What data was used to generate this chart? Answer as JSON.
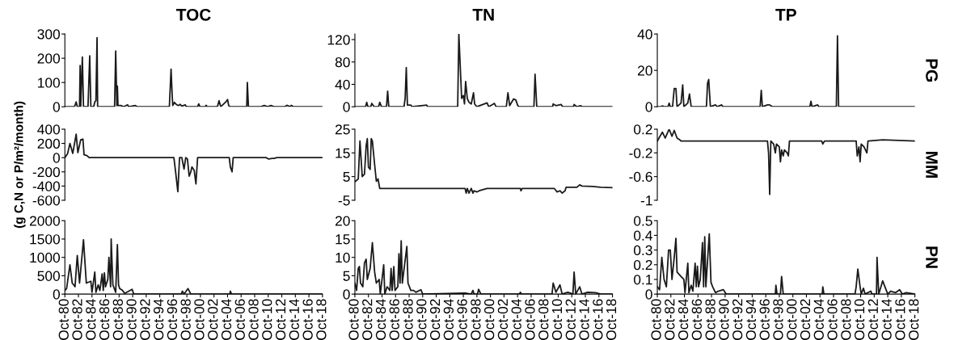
{
  "chart_data": [
    {
      "type": "line",
      "title": "TOC",
      "ylim": [
        0,
        300
      ],
      "yticks": [
        0,
        100,
        200,
        300
      ],
      "xlim": [
        "1980-10",
        "2018-10"
      ],
      "tick_labels": "y",
      "series": [
        {
          "color": "#1a1a1a",
          "x": [
            "1980-10",
            "1982-03",
            "1982-06",
            "1982-08",
            "1982-12",
            "1983-01",
            "1983-02",
            "1983-05",
            "1983-07",
            "1984-03",
            "1984-06",
            "1984-08",
            "1985-01",
            "1985-03",
            "1985-05",
            "1985-07",
            "1985-08",
            "1988-02",
            "1988-04",
            "1988-06",
            "1988-07",
            "1988-08",
            "1989-01",
            "1989-06",
            "1990-01",
            "1990-03",
            "1991-03",
            "1991-06",
            "1996-03",
            "1996-06",
            "1996-08",
            "1996-09",
            "1996-12",
            "1997-03",
            "1997-07",
            "1997-10",
            "1998-01",
            "1998-07",
            "1998-09",
            "2000-05",
            "2000-07",
            "2000-09",
            "2001-07",
            "2001-08",
            "2001-10",
            "2003-04",
            "2003-07",
            "2003-10",
            "2004-07",
            "2004-10",
            "2004-12",
            "2005-02",
            "2007-08",
            "2007-09",
            "2007-11",
            "2009-09",
            "2010-03",
            "2010-09",
            "2011-03",
            "2011-08",
            "2013-03",
            "2013-07",
            "2014-01",
            "2014-03",
            "2014-07",
            "2018-10"
          ],
          "values": [
            0,
            0,
            20,
            0,
            0,
            170,
            0,
            205,
            0,
            0,
            210,
            0,
            0,
            20,
            25,
            285,
            0,
            0,
            230,
            5,
            85,
            5,
            5,
            0,
            8,
            0,
            5,
            0,
            0,
            155,
            45,
            5,
            18,
            10,
            5,
            10,
            3,
            8,
            0,
            0,
            12,
            0,
            0,
            6,
            0,
            0,
            25,
            0,
            20,
            30,
            5,
            0,
            0,
            100,
            0,
            0,
            5,
            0,
            5,
            0,
            0,
            6,
            0,
            6,
            0,
            0
          ]
        }
      ]
    },
    {
      "type": "line",
      "title": "TN",
      "ylim": [
        0,
        130
      ],
      "yticks": [
        0,
        40,
        80,
        120
      ],
      "xlim": [
        "1980-10",
        "2018-10"
      ],
      "tick_labels": "y",
      "series": [
        {
          "color": "#1a1a1a",
          "x": [
            "1980-10",
            "1982-05",
            "1982-07",
            "1982-09",
            "1983-02",
            "1983-04",
            "1983-08",
            "1984-04",
            "1984-06",
            "1984-09",
            "1985-06",
            "1985-08",
            "1985-10",
            "1988-01",
            "1988-03",
            "1988-05",
            "1988-07",
            "1989-01",
            "1989-03",
            "1991-05",
            "1991-07",
            "1995-12",
            "1996-02",
            "1996-07",
            "1996-10",
            "1996-12",
            "1997-02",
            "1997-05",
            "1997-08",
            "1997-12",
            "1998-04",
            "1998-06",
            "1998-10",
            "2000-04",
            "2000-07",
            "2001-05",
            "2001-08",
            "2003-02",
            "2003-05",
            "2003-08",
            "2004-03",
            "2004-07",
            "2004-10",
            "2004-12",
            "2007-03",
            "2007-05",
            "2007-08",
            "2009-12",
            "2010-01",
            "2010-06",
            "2011-03",
            "2011-06",
            "2013-01",
            "2013-02",
            "2013-07",
            "2014-02",
            "2014-04",
            "2018-10"
          ],
          "values": [
            0,
            0,
            8,
            0,
            0,
            6,
            0,
            0,
            8,
            0,
            0,
            28,
            0,
            0,
            15,
            70,
            3,
            3,
            0,
            3,
            0,
            0,
            130,
            15,
            20,
            5,
            45,
            15,
            8,
            5,
            25,
            5,
            0,
            7,
            0,
            6,
            0,
            0,
            25,
            2,
            14,
            12,
            3,
            0,
            0,
            58,
            0,
            0,
            5,
            2,
            4,
            0,
            0,
            4,
            0,
            2,
            0,
            0
          ]
        }
      ]
    },
    {
      "type": "line",
      "title": "TP",
      "ylim": [
        0,
        40
      ],
      "yticks": [
        0,
        20,
        40
      ],
      "xlim": [
        "1980-10",
        "2018-10"
      ],
      "tick_labels": "y",
      "annotations": [
        "PG"
      ],
      "series": [
        {
          "color": "#1a1a1a",
          "x": [
            "1980-10",
            "1981-05",
            "1981-07",
            "1981-10",
            "1982-05",
            "1982-07",
            "1982-09",
            "1983-01",
            "1983-04",
            "1983-07",
            "1983-09",
            "1984-04",
            "1984-07",
            "1984-09",
            "1985-04",
            "1985-07",
            "1985-10",
            "1988-01",
            "1988-03",
            "1988-05",
            "1988-08",
            "1989-05",
            "1989-08",
            "1990-04",
            "1990-06",
            "1995-12",
            "1996-02",
            "1996-04",
            "1997-01",
            "1997-05",
            "1997-10",
            "2003-04",
            "2003-06",
            "2003-08",
            "2004-06",
            "2004-08",
            "2007-03",
            "2007-05",
            "2007-07",
            "2018-10"
          ],
          "values": [
            0,
            0,
            0.5,
            0,
            0,
            2,
            0,
            0,
            10,
            10,
            0,
            2,
            12,
            0,
            2,
            7,
            0,
            0,
            13,
            15,
            0,
            1,
            0,
            1,
            0,
            0,
            9,
            0,
            1,
            1,
            0,
            0,
            3,
            0,
            1,
            0,
            0,
            39,
            0,
            0
          ]
        }
      ]
    },
    {
      "type": "line",
      "ylabel": "(g C,N or P/m²/month)",
      "ylim": [
        -600,
        400
      ],
      "yticks": [
        -600,
        -400,
        -200,
        0,
        200,
        400
      ],
      "xlim": [
        "1980-10",
        "2018-10"
      ],
      "tick_labels": "y",
      "series": [
        {
          "color": "#1a1a1a",
          "x": [
            "1980-10",
            "1981-03",
            "1981-07",
            "1981-12",
            "1982-06",
            "1982-09",
            "1983-02",
            "1983-06",
            "1983-08",
            "1984-01",
            "1984-05",
            "1996-11",
            "1997-02",
            "1997-06",
            "1997-09",
            "1998-01",
            "1998-05",
            "1998-08",
            "1998-11",
            "1999-02",
            "1999-05",
            "1999-07",
            "1999-11",
            "2000-02",
            "2000-05",
            "2005-01",
            "2005-03",
            "2005-06",
            "2005-08",
            "2010-06",
            "2010-11",
            "2011-05",
            "2011-09",
            "2012-01",
            "2018-10"
          ],
          "values": [
            0,
            60,
            200,
            60,
            330,
            70,
            250,
            260,
            40,
            30,
            0,
            0,
            -200,
            -480,
            0,
            0,
            -160,
            0,
            -20,
            -260,
            -200,
            -130,
            -180,
            -370,
            0,
            0,
            -130,
            -200,
            0,
            0,
            -20,
            -10,
            -10,
            0,
            0
          ]
        }
      ]
    },
    {
      "type": "line",
      "ylim": [
        -5,
        25
      ],
      "yticks": [
        -5,
        5,
        15,
        25
      ],
      "xlim": [
        "1980-10",
        "2018-10"
      ],
      "tick_labels": "y",
      "series": [
        {
          "color": "#1a1a1a",
          "x": [
            "1980-10",
            "1980-11",
            "1981-04",
            "1981-07",
            "1981-11",
            "1982-03",
            "1982-06",
            "1982-08",
            "1982-10",
            "1983-01",
            "1983-03",
            "1983-05",
            "1983-09",
            "1983-12",
            "1984-03",
            "1984-06",
            "1997-01",
            "1997-03",
            "1997-05",
            "1997-08",
            "1997-12",
            "1998-03",
            "1998-05",
            "1998-10",
            "1999-02",
            "2000-04",
            "2005-03",
            "2005-04",
            "2005-06",
            "2010-03",
            "2010-08",
            "2011-01",
            "2011-05",
            "2011-10",
            "2011-12",
            "2013-07",
            "2013-12",
            "2014-04",
            "2015-11",
            "2017-01",
            "2018-10"
          ],
          "values": [
            3,
            3,
            4,
            20,
            5,
            6,
            18,
            21,
            9,
            8,
            21,
            20,
            10,
            3,
            4,
            0,
            0,
            -2,
            0,
            -2,
            0,
            -2,
            -1,
            -1.5,
            -1,
            0,
            0,
            -1,
            0,
            0,
            -1.5,
            -1,
            -2,
            -1,
            0.5,
            0.5,
            1.5,
            1,
            0.8,
            0.5,
            0.3
          ]
        }
      ]
    },
    {
      "type": "line",
      "ylim": [
        -1,
        0.2
      ],
      "yticks": [
        {
          "value": 0.2,
          "label": "0.2"
        },
        {
          "value": -0.2,
          "label": "-0.2"
        },
        {
          "value": -0.6,
          "label": "-0.6"
        },
        {
          "value": -1,
          "label": "-1"
        }
      ],
      "xlim": [
        "1980-10",
        "2018-10"
      ],
      "tick_labels": "y",
      "annotations": [
        "MM"
      ],
      "series": [
        {
          "color": "#1a1a1a",
          "x": [
            "1980-10",
            "1981-07",
            "1981-12",
            "1982-07",
            "1982-12",
            "1983-04",
            "1983-09",
            "1984-02",
            "1984-04",
            "1997-01",
            "1997-03",
            "1997-05",
            "1997-07",
            "1997-12",
            "1998-03",
            "1998-05",
            "1998-10",
            "1998-12",
            "1999-02",
            "1999-05",
            "1999-07",
            "1999-12",
            "2000-02",
            "2000-04",
            "2005-01",
            "2005-03",
            "2005-06",
            "2010-02",
            "2010-04",
            "2010-07",
            "2010-09",
            "2010-11",
            "2011-04",
            "2011-09",
            "2011-11",
            "2014-01",
            "2018-10"
          ],
          "values": [
            0,
            0.15,
            0.05,
            0.2,
            0.08,
            0.18,
            0.05,
            0.02,
            0,
            0,
            -0.2,
            -0.9,
            0,
            -0.05,
            -0.2,
            -0.05,
            -0.1,
            -0.35,
            -0.15,
            -0.25,
            -0.15,
            -0.2,
            -0.25,
            0,
            0,
            -0.05,
            0,
            0,
            -0.25,
            -0.1,
            -0.35,
            -0.05,
            -0.1,
            -0.2,
            0,
            0.02,
            0
          ]
        }
      ]
    },
    {
      "type": "line",
      "ylim": [
        0,
        2000
      ],
      "yticks": [
        0,
        500,
        1000,
        1500,
        2000
      ],
      "xlim": [
        "1980-10",
        "2018-10"
      ],
      "xticks": [
        {
          "value": "1980-10",
          "label": "Oct-80"
        },
        {
          "value": "1982-10",
          "label": "Oct-82"
        },
        {
          "value": "1984-10",
          "label": "Oct-84"
        },
        {
          "value": "1986-10",
          "label": "Oct-86"
        },
        {
          "value": "1988-10",
          "label": "Oct-88"
        },
        {
          "value": "1990-10",
          "label": "Oct-90"
        },
        {
          "value": "1992-10",
          "label": "Oct-92"
        },
        {
          "value": "1994-10",
          "label": "Oct-94"
        },
        {
          "value": "1996-10",
          "label": "Oct-96"
        },
        {
          "value": "1998-10",
          "label": "Oct-98"
        },
        {
          "value": "2000-10",
          "label": "Oct-00"
        },
        {
          "value": "2002-10",
          "label": "Oct-02"
        },
        {
          "value": "2004-10",
          "label": "Oct-04"
        },
        {
          "value": "2006-10",
          "label": "Oct-06"
        },
        {
          "value": "2008-10",
          "label": "Oct-08"
        },
        {
          "value": "2010-10",
          "label": "Oct-10"
        },
        {
          "value": "2012-10",
          "label": "Oct-12"
        },
        {
          "value": "2014-10",
          "label": "Oct-14"
        },
        {
          "value": "2016-10",
          "label": "Oct-16"
        },
        {
          "value": "2018-10",
          "label": "Oct-18"
        }
      ],
      "series": [
        {
          "color": "#1a1a1a",
          "x": [
            "1980-10",
            "1981-01",
            "1981-07",
            "1981-11",
            "1982-04",
            "1982-08",
            "1982-12",
            "1983-07",
            "1983-12",
            "1984-08",
            "1984-10",
            "1985-03",
            "1985-05",
            "1985-09",
            "1985-12",
            "1986-04",
            "1986-06",
            "1986-08",
            "1986-10",
            "1987-02",
            "1987-04",
            "1987-07",
            "1987-08",
            "1987-11",
            "1988-04",
            "1988-07",
            "1988-09",
            "1988-11",
            "1989-04",
            "1989-08",
            "1990-09",
            "1990-12",
            "1997-12",
            "1998-02",
            "1998-05",
            "1998-12",
            "1999-05",
            "2005-02",
            "2005-03",
            "2005-05",
            "2018-10"
          ],
          "values": [
            100,
            150,
            800,
            300,
            200,
            1050,
            300,
            1480,
            300,
            350,
            50,
            600,
            50,
            250,
            100,
            550,
            100,
            580,
            200,
            400,
            1000,
            200,
            1500,
            250,
            50,
            1350,
            250,
            150,
            100,
            20,
            130,
            0,
            0,
            80,
            0,
            150,
            0,
            0,
            80,
            0,
            0
          ]
        }
      ]
    },
    {
      "type": "line",
      "ylim": [
        0,
        20
      ],
      "yticks": [
        0,
        5,
        10,
        15,
        20
      ],
      "xlim": [
        "1980-10",
        "2018-10"
      ],
      "xticks": [
        {
          "value": "1980-10",
          "label": "Oct-80"
        },
        {
          "value": "1982-10",
          "label": "Oct-82"
        },
        {
          "value": "1984-10",
          "label": "Oct-84"
        },
        {
          "value": "1986-10",
          "label": "Oct-86"
        },
        {
          "value": "1988-10",
          "label": "Oct-88"
        },
        {
          "value": "1990-10",
          "label": "Oct-90"
        },
        {
          "value": "1992-10",
          "label": "Oct-92"
        },
        {
          "value": "1994-10",
          "label": "Oct-94"
        },
        {
          "value": "1996-10",
          "label": "Oct-96"
        },
        {
          "value": "1998-10",
          "label": "Oct-98"
        },
        {
          "value": "2000-10",
          "label": "Oct-00"
        },
        {
          "value": "2002-10",
          "label": "Oct-02"
        },
        {
          "value": "2004-10",
          "label": "Oct-04"
        },
        {
          "value": "2006-10",
          "label": "Oct-06"
        },
        {
          "value": "2008-10",
          "label": "Oct-08"
        },
        {
          "value": "2010-10",
          "label": "Oct-10"
        },
        {
          "value": "2012-10",
          "label": "Oct-12"
        },
        {
          "value": "2014-10",
          "label": "Oct-14"
        },
        {
          "value": "2016-10",
          "label": "Oct-16"
        },
        {
          "value": "2018-10",
          "label": "Oct-18"
        }
      ],
      "series": [
        {
          "color": "#1a1a1a",
          "x": [
            "1980-10",
            "1981-01",
            "1981-04",
            "1981-06",
            "1981-08",
            "1981-12",
            "1982-03",
            "1982-06",
            "1982-08",
            "1983-01",
            "1983-05",
            "1983-09",
            "1983-12",
            "1984-05",
            "1984-07",
            "1985-01",
            "1985-03",
            "1985-07",
            "1985-12",
            "1986-02",
            "1986-04",
            "1986-07",
            "1986-09",
            "1987-02",
            "1987-04",
            "1987-06",
            "1987-08",
            "1987-10",
            "1988-06",
            "1988-08",
            "1989-01",
            "1989-06",
            "1989-10",
            "1990-07",
            "1990-10",
            "1997-01",
            "1997-12",
            "1998-03",
            "1998-05",
            "1998-11",
            "1999-01",
            "1999-05",
            "2005-01",
            "2005-03",
            "2005-05",
            "2009-11",
            "2010-01",
            "2010-06",
            "2011-01",
            "2011-05",
            "2012-03",
            "2012-12",
            "2013-02",
            "2013-05",
            "2013-12",
            "2014-04",
            "2015-02",
            "2016-04",
            "2017-01",
            "2018-10"
          ],
          "values": [
            3,
            1,
            7,
            7.5,
            3,
            2,
            8.5,
            9.5,
            4,
            7,
            14,
            6,
            3,
            4,
            0,
            8,
            0,
            2,
            1,
            7,
            1,
            7.5,
            1,
            2,
            11,
            3,
            14.5,
            3,
            13,
            3,
            1,
            1,
            0.5,
            1.2,
            0,
            0.3,
            0,
            1,
            0,
            0,
            1.3,
            0,
            0,
            0.5,
            0,
            0,
            3,
            0.5,
            2.5,
            0,
            0.5,
            0,
            6,
            0,
            2,
            0,
            0.5,
            0.4,
            0,
            0
          ]
        }
      ]
    },
    {
      "type": "line",
      "ylim": [
        0,
        0.5
      ],
      "yticks": [
        0,
        0.1,
        0.2,
        0.3,
        0.4,
        0.5
      ],
      "xlim": [
        "1980-10",
        "2018-10"
      ],
      "annotations": [
        "PN"
      ],
      "xticks": [
        {
          "value": "1980-10",
          "label": "Oct-80"
        },
        {
          "value": "1982-10",
          "label": "Oct-82"
        },
        {
          "value": "1984-10",
          "label": "Oct-84"
        },
        {
          "value": "1986-10",
          "label": "Oct-86"
        },
        {
          "value": "1988-10",
          "label": "Oct-88"
        },
        {
          "value": "1990-10",
          "label": "Oct-90"
        },
        {
          "value": "1992-10",
          "label": "Oct-92"
        },
        {
          "value": "1994-10",
          "label": "Oct-94"
        },
        {
          "value": "1996-10",
          "label": "Oct-96"
        },
        {
          "value": "1998-10",
          "label": "Oct-98"
        },
        {
          "value": "2000-10",
          "label": "Oct-00"
        },
        {
          "value": "2002-10",
          "label": "Oct-02"
        },
        {
          "value": "2004-10",
          "label": "Oct-04"
        },
        {
          "value": "2006-10",
          "label": "Oct-06"
        },
        {
          "value": "2008-10",
          "label": "Oct-08"
        },
        {
          "value": "2010-10",
          "label": "Oct-10"
        },
        {
          "value": "2012-10",
          "label": "Oct-12"
        },
        {
          "value": "2014-10",
          "label": "Oct-14"
        },
        {
          "value": "2016-10",
          "label": "Oct-16"
        },
        {
          "value": "2018-10",
          "label": "Oct-18"
        }
      ],
      "series": [
        {
          "color": "#1a1a1a",
          "x": [
            "1980-10",
            "1981-02",
            "1981-06",
            "1981-10",
            "1982-02",
            "1982-06",
            "1982-09",
            "1982-12",
            "1983-04",
            "1983-07",
            "1983-09",
            "1984-04",
            "1984-09",
            "1984-11",
            "1985-04",
            "1985-06",
            "1985-10",
            "1986-01",
            "1986-05",
            "1986-07",
            "1986-09",
            "1986-11",
            "1987-02",
            "1987-06",
            "1987-08",
            "1987-10",
            "1987-12",
            "1988-06",
            "1988-09",
            "1988-12",
            "1989-05",
            "1989-10",
            "1990-07",
            "1990-12",
            "1998-03",
            "1998-04",
            "1998-06",
            "1998-12",
            "1999-02",
            "1999-05",
            "2005-02",
            "2005-03",
            "2005-05",
            "2009-12",
            "2010-02",
            "2010-05",
            "2010-09",
            "2010-11",
            "2011-03",
            "2011-06",
            "2012-04",
            "2012-06",
            "2013-02",
            "2013-03",
            "2013-06",
            "2014-01",
            "2014-05",
            "2014-10",
            "2015-03",
            "2015-12",
            "2016-07",
            "2016-12",
            "2017-07",
            "2018-10"
          ],
          "values": [
            0.05,
            0.03,
            0.25,
            0.1,
            0.05,
            0.3,
            0.3,
            0.1,
            0.25,
            0.38,
            0.15,
            0.12,
            0.1,
            0.01,
            0.21,
            0.01,
            0.06,
            0.02,
            0.21,
            0.05,
            0.19,
            0.05,
            0.1,
            0.35,
            0.05,
            0.39,
            0.05,
            0.41,
            0.08,
            0.05,
            0.01,
            0.02,
            0.03,
            0,
            0,
            0.06,
            0,
            0,
            0.12,
            0,
            0,
            0.05,
            0,
            0,
            0.05,
            0.17,
            0.05,
            0,
            0.04,
            0,
            0.02,
            0,
            0,
            0.25,
            0,
            0.09,
            0.05,
            0,
            0.02,
            0.01,
            0.03,
            0,
            0.01,
            0
          ]
        }
      ]
    }
  ]
}
